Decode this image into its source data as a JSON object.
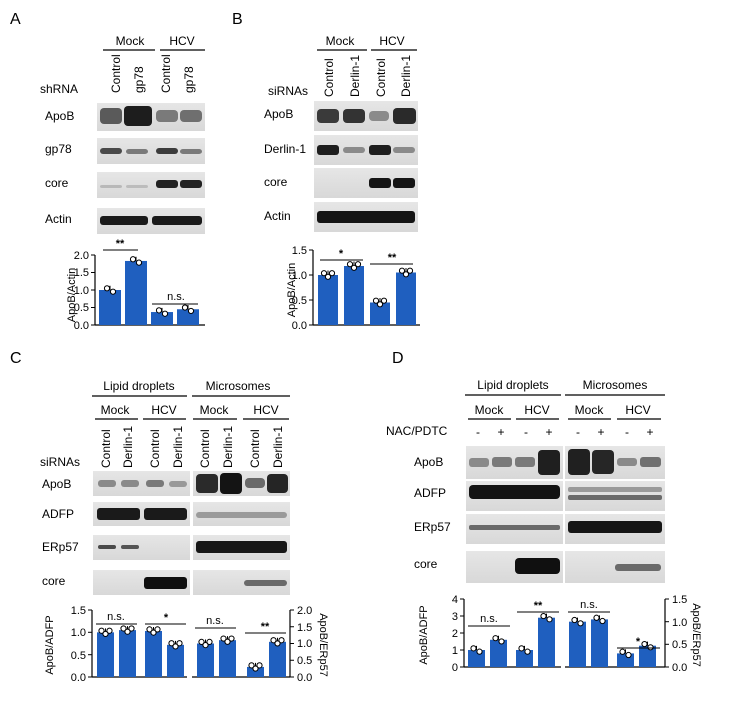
{
  "panels": {
    "A": {
      "letter": "A",
      "groups": [
        "Mock",
        "HCV"
      ],
      "row_label": "shRNA",
      "lanes": [
        "Control",
        "gp78",
        "Control",
        "gp78"
      ],
      "blots": [
        "ApoB",
        "gp78",
        "core",
        "Actin"
      ],
      "chart": {
        "ylabel": "ApoB/Actin",
        "ticks": [
          "0.0",
          "0.5",
          "1.0",
          "1.5",
          "2.0"
        ],
        "sig": [
          "**",
          "n.s."
        ]
      }
    },
    "B": {
      "letter": "B",
      "groups": [
        "Mock",
        "HCV"
      ],
      "row_label": "siRNAs",
      "lanes": [
        "Control",
        "Derlin-1",
        "Control",
        "Derlin-1"
      ],
      "blots": [
        "ApoB",
        "Derlin-1",
        "core",
        "Actin"
      ],
      "chart": {
        "ylabel": "ApoB/Actin",
        "ticks": [
          "0.0",
          "0.5",
          "1.0",
          "1.5"
        ],
        "sig": [
          "*",
          "**"
        ]
      }
    },
    "C": {
      "letter": "C",
      "sections": [
        "Lipid droplets",
        "Microsomes"
      ],
      "groups": [
        "Mock",
        "HCV",
        "Mock",
        "HCV"
      ],
      "row_label": "siRNAs",
      "lanes": [
        "Control",
        "Derlin-1",
        "Control",
        "Derlin-1",
        "Control",
        "Derlin-1",
        "Control",
        "Derlin-1"
      ],
      "blots": [
        "ApoB",
        "ADFP",
        "ERp57",
        "core"
      ],
      "chart": {
        "ylabel_left": "ApoB/ADFP",
        "ylabel_right": "ApoB/ERp57",
        "ticks_left": [
          "0.0",
          "0.5",
          "1.0",
          "1.5"
        ],
        "ticks_right": [
          "0.0",
          "0.5",
          "1.0",
          "1.5",
          "2.0"
        ],
        "sig": [
          "n.s.",
          "*",
          "n.s.",
          "**"
        ]
      }
    },
    "D": {
      "letter": "D",
      "sections": [
        "Lipid droplets",
        "Microsomes"
      ],
      "groups": [
        "Mock",
        "HCV",
        "Mock",
        "HCV"
      ],
      "row_label": "NAC/PDTC",
      "lanes": [
        "-",
        "+",
        "-",
        "+",
        "-",
        "+",
        "-",
        "+"
      ],
      "blots": [
        "ApoB",
        "ADFP",
        "ERp57",
        "core"
      ],
      "chart": {
        "ylabel_left": "ApoB/ADFP",
        "ylabel_right": "ApoB/ERp57",
        "ticks_left": [
          "0",
          "1",
          "2",
          "3",
          "4"
        ],
        "ticks_right": [
          "0.0",
          "0.5",
          "1.0",
          "1.5"
        ],
        "sig": [
          "n.s.",
          "**",
          "n.s.",
          "*"
        ]
      }
    }
  },
  "chart_data": [
    {
      "type": "bar",
      "panel": "A",
      "title": "",
      "ylabel": "ApoB/Actin",
      "ylim": [
        0,
        2.0
      ],
      "categories": [
        "Mock Control",
        "Mock gp78",
        "HCV Control",
        "HCV gp78"
      ],
      "values": [
        1.0,
        1.83,
        0.37,
        0.45
      ],
      "color": "#1f5fbf"
    },
    {
      "type": "bar",
      "panel": "B",
      "title": "",
      "ylabel": "ApoB/Actin",
      "ylim": [
        0,
        1.5
      ],
      "categories": [
        "Mock Control",
        "Mock Derlin-1",
        "HCV Control",
        "HCV Derlin-1"
      ],
      "values": [
        1.0,
        1.18,
        0.45,
        1.05
      ],
      "color": "#1f5fbf"
    },
    {
      "type": "bar",
      "panel": "C-left",
      "title": "",
      "ylabel": "ApoB/ADFP",
      "ylim": [
        0,
        1.5
      ],
      "categories": [
        "Mock Control",
        "Mock Derlin-1",
        "HCV Control",
        "HCV Derlin-1"
      ],
      "values": [
        1.0,
        1.05,
        1.03,
        0.72
      ],
      "color": "#1f5fbf"
    },
    {
      "type": "bar",
      "panel": "C-right",
      "title": "",
      "ylabel": "ApoB/ERp57",
      "ylim": [
        0,
        2.0
      ],
      "categories": [
        "Mock Control",
        "Mock Derlin-1",
        "HCV Control",
        "HCV Derlin-1"
      ],
      "values": [
        1.0,
        1.1,
        0.3,
        1.05
      ],
      "color": "#1f5fbf"
    },
    {
      "type": "bar",
      "panel": "D-left",
      "title": "",
      "ylabel": "ApoB/ADFP",
      "ylim": [
        0,
        4
      ],
      "categories": [
        "Mock -",
        "Mock +",
        "HCV -",
        "HCV +"
      ],
      "values": [
        1.0,
        1.6,
        1.0,
        2.9
      ],
      "color": "#1f5fbf"
    },
    {
      "type": "bar",
      "panel": "D-right",
      "title": "",
      "ylabel": "ApoB/ERp57",
      "ylim": [
        0,
        1.5
      ],
      "categories": [
        "Mock -",
        "Mock +",
        "HCV -",
        "HCV +"
      ],
      "values": [
        1.0,
        1.05,
        0.3,
        0.47
      ],
      "color": "#1f5fbf"
    }
  ]
}
